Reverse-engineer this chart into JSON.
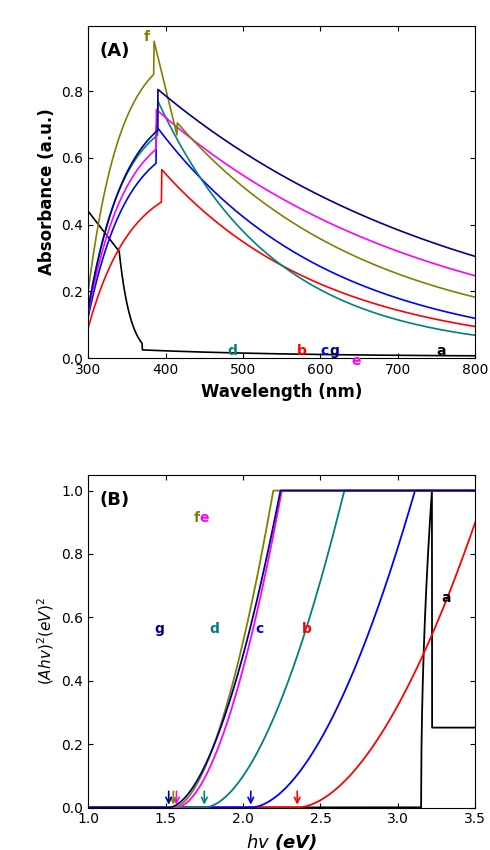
{
  "panel_A": {
    "title": "(A)",
    "xlabel": "Wavelength (nm)",
    "ylabel": "Absorbance (a.u.)",
    "xlim": [
      300,
      800
    ],
    "curves": {
      "a": {
        "color": "#000000",
        "label": "a"
      },
      "b": {
        "color": "#ff0000",
        "label": "b"
      },
      "c": {
        "color": "#0000ff",
        "label": "c"
      },
      "d": {
        "color": "#008080",
        "label": "d"
      },
      "e": {
        "color": "#ff00ff",
        "label": "e"
      },
      "f": {
        "color": "#808000",
        "label": "f"
      },
      "g": {
        "color": "#000080",
        "label": "g"
      }
    }
  },
  "panel_B": {
    "title": "(B)",
    "xlabel": "hv (eV)",
    "ylabel": "(Ahv)^2(eV)^2",
    "xlim": [
      1.0,
      3.5
    ],
    "curves": {
      "a": {
        "color": "#000000",
        "label": "a",
        "bandgap": 3.2
      },
      "b": {
        "color": "#ff0000",
        "label": "b",
        "bandgap": 2.35
      },
      "c": {
        "color": "#0000ff",
        "label": "c",
        "bandgap": 2.05
      },
      "d": {
        "color": "#008080",
        "label": "d",
        "bandgap": 1.75
      },
      "e": {
        "color": "#ff00ff",
        "label": "e",
        "bandgap": 1.57
      },
      "f": {
        "color": "#808000",
        "label": "f",
        "bandgap": 1.55
      },
      "g": {
        "color": "#000080",
        "label": "g",
        "bandgap": 1.52
      }
    }
  }
}
